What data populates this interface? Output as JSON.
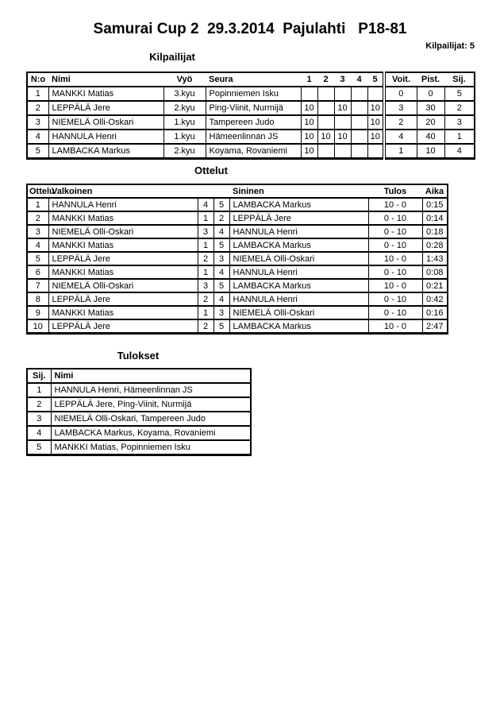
{
  "page": {
    "title": "Samurai Cup 2  29.3.2014  Pajulahti   P18-81",
    "competitors_count_label": "Kilpailijat: 5"
  },
  "sections": {
    "kilpailijat": {
      "heading": "Kilpailijat",
      "columns": [
        "N:o",
        "Nimi",
        "Vyö",
        "Seura",
        "1",
        "2",
        "3",
        "4",
        "5",
        "Voit.",
        "Pist.",
        "Sij."
      ],
      "rows": [
        [
          "1",
          "MANKKI Matias",
          "3.kyu",
          "Popinniemen Isku",
          "",
          "",
          "",
          "",
          "",
          "0",
          "0",
          "5"
        ],
        [
          "2",
          "LEPPÄLÄ Jere",
          "2.kyu",
          "Ping-Viinit, Nurmijä",
          "10",
          "",
          "10",
          "",
          "10",
          "3",
          "30",
          "2"
        ],
        [
          "3",
          "NIEMELÄ Olli-Oskari",
          "1.kyu",
          "Tampereen Judo",
          "10",
          "",
          "",
          "",
          "10",
          "2",
          "20",
          "3"
        ],
        [
          "4",
          "HANNULA Henri",
          "1.kyu",
          "Hämeenlinnan JS",
          "10",
          "10",
          "10",
          "",
          "10",
          "4",
          "40",
          "1"
        ],
        [
          "5",
          "LAMBACKA Markus",
          "2.kyu",
          "Koyama, Rovaniemi",
          "10",
          "",
          "",
          "",
          "",
          "1",
          "10",
          "4"
        ]
      ]
    },
    "ottelut": {
      "heading": "Ottelut",
      "columns": [
        "Ottelu",
        "Valkoinen",
        "",
        "",
        "Sininen",
        "Tulos",
        "Aika"
      ],
      "rows": [
        [
          "1",
          "HANNULA Henri",
          "4",
          "5",
          "LAMBACKA Markus",
          "10 - 0",
          "0:15"
        ],
        [
          "2",
          "MANKKI Matias",
          "1",
          "2",
          "LEPPÄLÄ Jere",
          "0 - 10",
          "0:14"
        ],
        [
          "3",
          "NIEMELÄ Olli-Oskari",
          "3",
          "4",
          "HANNULA Henri",
          "0 - 10",
          "0:18"
        ],
        [
          "4",
          "MANKKI Matias",
          "1",
          "5",
          "LAMBACKA Markus",
          "0 - 10",
          "0:28"
        ],
        [
          "5",
          "LEPPÄLÄ Jere",
          "2",
          "3",
          "NIEMELÄ Olli-Oskari",
          "10 - 0",
          "1:43"
        ],
        [
          "6",
          "MANKKI Matias",
          "1",
          "4",
          "HANNULA Henri",
          "0 - 10",
          "0:08"
        ],
        [
          "7",
          "NIEMELÄ Olli-Oskari",
          "3",
          "5",
          "LAMBACKA Markus",
          "10 - 0",
          "0:21"
        ],
        [
          "8",
          "LEPPÄLÄ Jere",
          "2",
          "4",
          "HANNULA Henri",
          "0 - 10",
          "0:42"
        ],
        [
          "9",
          "MANKKI Matias",
          "1",
          "3",
          "NIEMELÄ Olli-Oskari",
          "0 - 10",
          "0:16"
        ],
        [
          "10",
          "LEPPÄLÄ Jere",
          "2",
          "5",
          "LAMBACKA Markus",
          "10 - 0",
          "2:47"
        ]
      ]
    },
    "tulokset": {
      "heading": "Tulokset",
      "columns": [
        "Sij.",
        "Nimi"
      ],
      "rows": [
        [
          "1",
          "HANNULA Henri, Hämeenlinnan JS"
        ],
        [
          "2",
          "LEPPÄLÄ Jere, Ping-Viinit, Nurmijä"
        ],
        [
          "3",
          "NIEMELÄ Olli-Oskari, Tampereen Judo"
        ],
        [
          "4",
          "LAMBACKA Markus, Koyama, Rovaniemi"
        ],
        [
          "5",
          "MANKKI Matias, Popinniemen Isku"
        ]
      ]
    }
  }
}
